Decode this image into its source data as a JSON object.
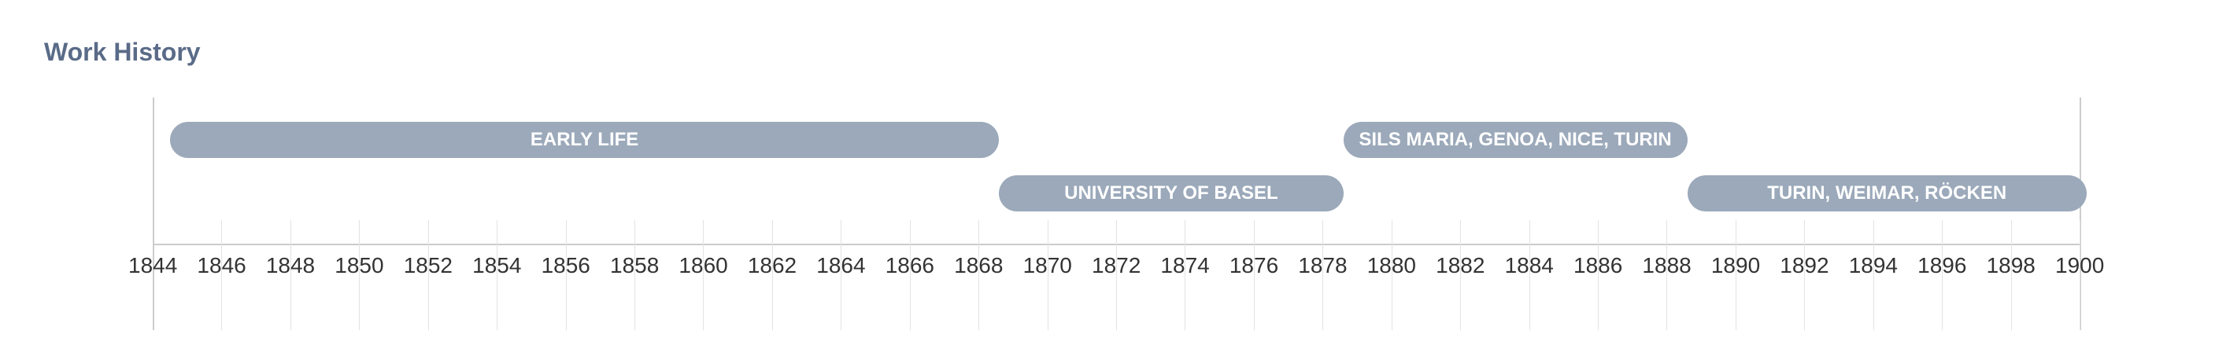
{
  "title": "Work History",
  "colors": {
    "bar": "#9ba9ba",
    "title": "#5a6b88",
    "bar_text": "#ffffff"
  },
  "axis": {
    "start_year": 1844,
    "end_year": 1900,
    "ticks": [
      "1844",
      "1846",
      "1848",
      "1850",
      "1852",
      "1854",
      "1856",
      "1858",
      "1860",
      "1862",
      "1864",
      "1866",
      "1868",
      "1870",
      "1872",
      "1874",
      "1876",
      "1878",
      "1880",
      "1882",
      "1884",
      "1886",
      "1888",
      "1890",
      "1892",
      "1894",
      "1896",
      "1898",
      "1900"
    ]
  },
  "periods": [
    {
      "label": "EARLY LIFE",
      "start": 1844.5,
      "end": 1868.6
    },
    {
      "label": "UNIVERSITY OF BASEL",
      "start": 1868.6,
      "end": 1878.6
    },
    {
      "label": "SILS MARIA, GENOA, NICE, TURIN",
      "start": 1878.6,
      "end": 1888.6
    },
    {
      "label": "TURIN, WEIMAR, RÖCKEN",
      "start": 1888.6,
      "end": 1900.2
    }
  ]
}
